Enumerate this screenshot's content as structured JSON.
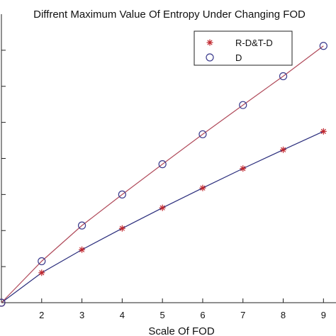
{
  "chart_data": {
    "type": "line",
    "title": "Diffrent Maximum Value Of Entropy Under Changing FOD",
    "xlabel": "Scale Of FOD",
    "ylabel": "",
    "xlim": [
      1,
      9.1
    ],
    "x": [
      1,
      2,
      3,
      4,
      5,
      6,
      7,
      8,
      9
    ],
    "xticks": [
      2,
      3,
      4,
      5,
      6,
      7,
      8,
      9
    ],
    "grid": false,
    "legend_position": "top-right",
    "series": [
      {
        "name": "R-D&T-D",
        "marker": "asterisk",
        "marker_color": "#c0262d",
        "line_color": "#2a2d7c",
        "values": [
          0,
          0.83,
          1.47,
          2.06,
          2.63,
          3.18,
          3.72,
          4.24,
          4.75
        ]
      },
      {
        "name": "D",
        "marker": "circle",
        "marker_color": "#3a3a8c",
        "line_color": "#b04a5a",
        "values": [
          0,
          1.15,
          2.14,
          3.0,
          3.84,
          4.67,
          5.48,
          6.28,
          7.12
        ]
      }
    ]
  }
}
